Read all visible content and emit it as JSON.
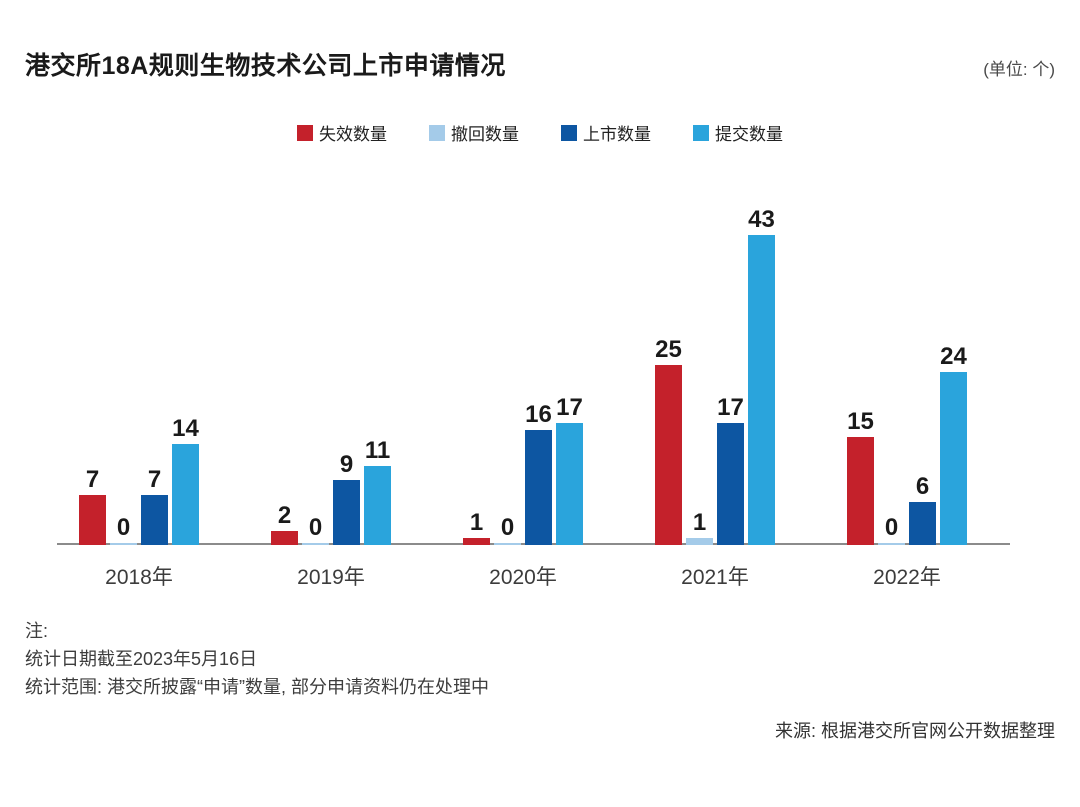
{
  "header": {
    "title": "港交所18A规则生物技术公司上市申请情况",
    "unit_label": "(单位: 个)"
  },
  "legend": [
    {
      "label": "失效数量",
      "color": "#c4212b"
    },
    {
      "label": "撤回数量",
      "color": "#a4cbe9"
    },
    {
      "label": "上市数量",
      "color": "#0d56a2"
    },
    {
      "label": "提交数量",
      "color": "#2aa4dc"
    }
  ],
  "chart_data": {
    "type": "bar",
    "title": "港交所18A规则生物技术公司上市申请情况",
    "unit": "个",
    "categories": [
      "2018年",
      "2019年",
      "2020年",
      "2021年",
      "2022年"
    ],
    "series": [
      {
        "name": "失效数量",
        "color": "#c4212b",
        "values": [
          7,
          2,
          1,
          25,
          15
        ]
      },
      {
        "name": "撤回数量",
        "color": "#a4cbe9",
        "values": [
          0,
          0,
          0,
          1,
          0
        ]
      },
      {
        "name": "上市数量",
        "color": "#0d56a2",
        "values": [
          7,
          9,
          16,
          17,
          6
        ]
      },
      {
        "name": "提交数量",
        "color": "#2aa4dc",
        "values": [
          14,
          11,
          17,
          43,
          24
        ]
      }
    ],
    "ylim": [
      0,
      45
    ],
    "grid": false,
    "legend_position": "top-center",
    "data_labels": true,
    "axis_color": "#8b8b8b"
  },
  "notes": {
    "heading": "注:",
    "lines": [
      "统计日期截至2023年5月16日",
      "统计范围: 港交所披露“申请”数量, 部分申请资料仍在处理中"
    ]
  },
  "source": "来源: 根据港交所官网公开数据整理"
}
